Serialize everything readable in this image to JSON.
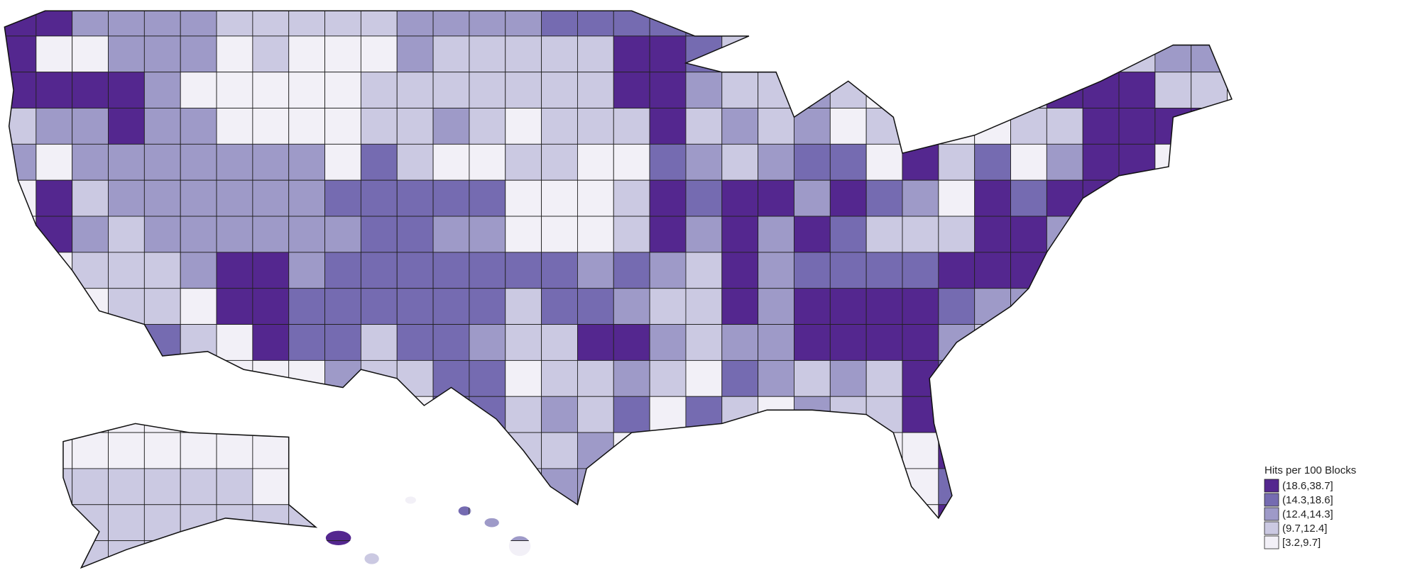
{
  "legend": {
    "title": "Hits per 100 Blocks",
    "classes": [
      {
        "label": "(18.6,38.7]",
        "color": "#54278f"
      },
      {
        "label": "(14.3,18.6]",
        "color": "#756bb1"
      },
      {
        "label": "(12.4,14.3]",
        "color": "#9e9ac8"
      },
      {
        "label": "(9.7,12.4]",
        "color": "#cbc9e2"
      },
      {
        "label": "[3.2,9.7]",
        "color": "#f2f0f7"
      }
    ]
  }
}
